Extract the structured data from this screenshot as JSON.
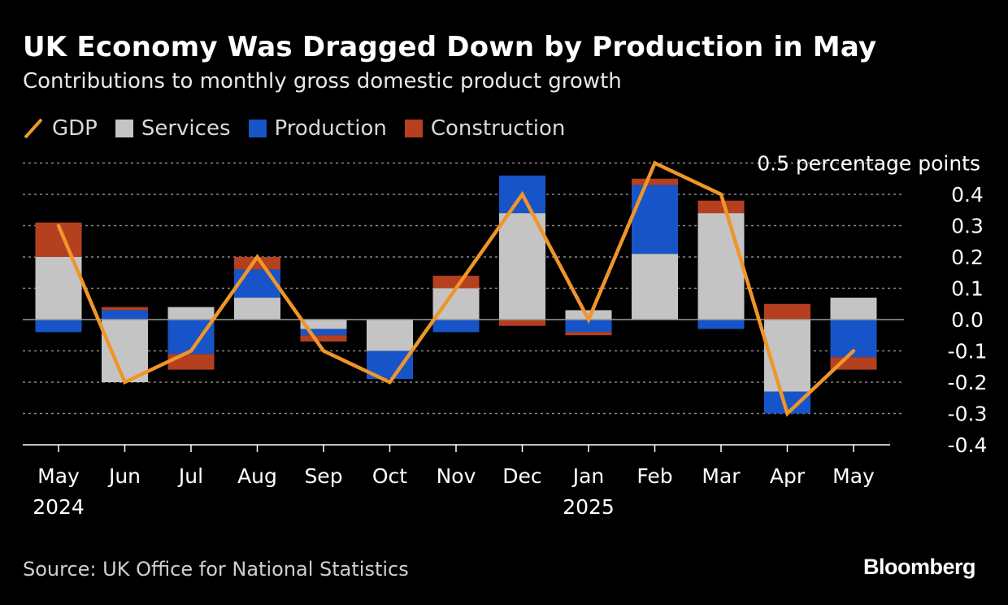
{
  "header": {
    "title": "UK Economy Was Dragged Down by Production in May",
    "subtitle": "Contributions to monthly gross domestic product growth"
  },
  "legend": [
    {
      "label": "GDP",
      "kind": "line",
      "color": "#f0952a"
    },
    {
      "label": "Services",
      "kind": "bar",
      "color": "#c4c4c4"
    },
    {
      "label": "Production",
      "kind": "bar",
      "color": "#1754c8"
    },
    {
      "label": "Construction",
      "kind": "bar",
      "color": "#b5401f"
    }
  ],
  "footer": {
    "source": "Source: UK Office for National Statistics",
    "brand": "Bloomberg"
  },
  "chart_data": {
    "type": "bar",
    "stacked": true,
    "categories": [
      "May",
      "Jun",
      "Jul",
      "Aug",
      "Sep",
      "Oct",
      "Nov",
      "Dec",
      "Jan",
      "Feb",
      "Mar",
      "Apr",
      "May"
    ],
    "year_labels": [
      {
        "index": 0,
        "label": "2024"
      },
      {
        "index": 8,
        "label": "2025"
      }
    ],
    "series": [
      {
        "name": "Services",
        "color": "#c4c4c4",
        "values": [
          0.2,
          -0.2,
          0.04,
          0.07,
          -0.03,
          -0.1,
          0.1,
          0.34,
          0.03,
          0.21,
          0.34,
          -0.23,
          0.07
        ]
      },
      {
        "name": "Production",
        "color": "#1754c8",
        "values": [
          -0.04,
          0.03,
          -0.11,
          0.09,
          -0.02,
          -0.09,
          -0.04,
          0.12,
          -0.04,
          0.22,
          -0.03,
          -0.07,
          -0.12
        ]
      },
      {
        "name": "Construction",
        "color": "#b5401f",
        "values": [
          0.11,
          0.01,
          -0.05,
          0.04,
          -0.02,
          0.0,
          0.04,
          -0.02,
          -0.01,
          0.02,
          0.04,
          0.05,
          -0.04
        ]
      }
    ],
    "line": {
      "name": "GDP",
      "color": "#f0952a",
      "values": [
        0.3,
        -0.2,
        -0.1,
        0.2,
        -0.1,
        -0.2,
        0.1,
        0.4,
        0.0,
        0.5,
        0.4,
        -0.3,
        -0.1
      ]
    },
    "ylim": [
      -0.4,
      0.5
    ],
    "yticks": [
      0.4,
      0.3,
      0.2,
      0.1,
      0.0,
      -0.1,
      -0.2,
      -0.3,
      -0.4
    ],
    "ytick_labels": [
      "0.4",
      "0.3",
      "0.2",
      "0.1",
      "0.0",
      "-0.1",
      "-0.2",
      "-0.3",
      "-0.4"
    ],
    "ytop_label": "0.5 percentage points",
    "grid": true,
    "legend_position": "top-left"
  }
}
